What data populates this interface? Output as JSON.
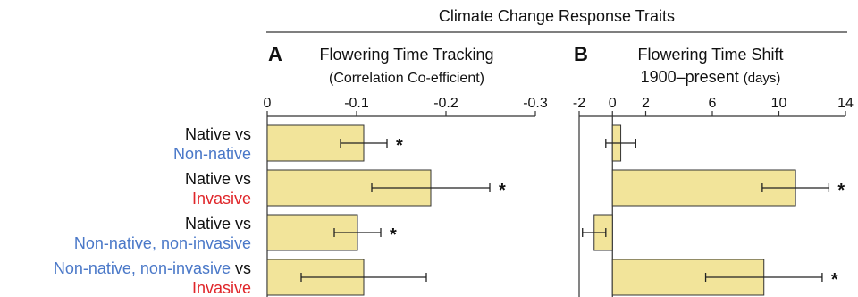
{
  "super_title": "Climate Change Response Traits",
  "colors": {
    "bar_fill": "#f2e49a",
    "bar_stroke": "#333333",
    "native": "#111111",
    "nonnative": "#4a78c8",
    "invasive": "#e0262a"
  },
  "row_labels": [
    {
      "line1": [
        {
          "text": "Native vs",
          "cls": "black"
        }
      ],
      "line2": [
        {
          "text": "Non-native",
          "cls": "blue"
        }
      ]
    },
    {
      "line1": [
        {
          "text": "Native vs",
          "cls": "black"
        }
      ],
      "line2": [
        {
          "text": "Invasive",
          "cls": "red"
        }
      ]
    },
    {
      "line1": [
        {
          "text": "Native vs",
          "cls": "black"
        }
      ],
      "line2": [
        {
          "text": "Non-native, non-invasive",
          "cls": "blue"
        }
      ]
    },
    {
      "line1": [
        {
          "text": "Non-native, non-invasive",
          "cls": "blue"
        },
        {
          "text": " vs",
          "cls": "black"
        }
      ],
      "line2": [
        {
          "text": "Invasive",
          "cls": "red"
        }
      ]
    }
  ],
  "chart_data": [
    {
      "type": "bar",
      "orientation": "horizontal",
      "panel_letter": "A",
      "title": "Flowering Time Tracking",
      "subtitle": "(Correlation Co-efficient)",
      "categories": [
        "Native vs Non-native",
        "Native vs Invasive",
        "Native vs Non-native, non-invasive",
        "Non-native, non-invasive vs Invasive"
      ],
      "values": [
        -0.108,
        -0.183,
        -0.101,
        -0.108
      ],
      "error": [
        0.026,
        0.066,
        0.026,
        0.07
      ],
      "significant": [
        true,
        true,
        true,
        false
      ],
      "xlim": [
        0,
        -0.3
      ],
      "ticks": [
        0,
        -0.1,
        -0.2,
        -0.3
      ],
      "tick_labels": [
        "0",
        "-0.1",
        "-0.2",
        "-0.3"
      ]
    },
    {
      "type": "bar",
      "orientation": "horizontal",
      "panel_letter": "B",
      "title": "Flowering Time Shift",
      "subtitle_main": "1900–present",
      "subtitle_unit": "(days)",
      "categories": [
        "Native vs Non-native",
        "Native vs Invasive",
        "Native vs Non-native, non-invasive",
        "Non-native, non-invasive vs Invasive"
      ],
      "values": [
        0.5,
        11.0,
        -1.1,
        9.1
      ],
      "error": [
        0.9,
        2.0,
        0.7,
        3.5
      ],
      "significant": [
        false,
        true,
        false,
        true
      ],
      "xlim": [
        -2,
        14
      ],
      "ticks": [
        -2,
        0,
        2,
        6,
        10,
        14
      ],
      "tick_labels": [
        "-2",
        "0",
        "2",
        "6",
        "10",
        "14"
      ]
    }
  ]
}
